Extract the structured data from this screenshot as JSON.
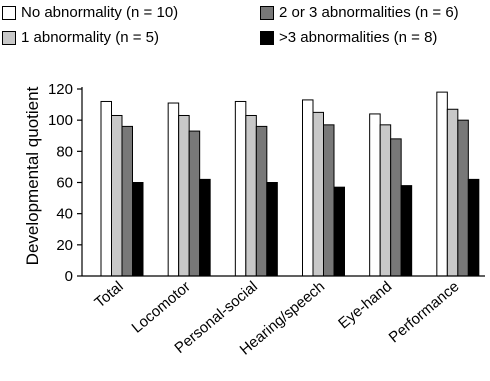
{
  "chart_data": {
    "type": "bar",
    "categories": [
      "Total",
      "Locomotor",
      "Personal-social",
      "Hearing/speech",
      "Eye-hand",
      "Performance"
    ],
    "series": [
      {
        "name": "No abnormality (n = 10)",
        "color": "#ffffff",
        "values": [
          112,
          111,
          112,
          113,
          104,
          118
        ]
      },
      {
        "name": "1 abnormality (n = 5)",
        "color": "#c8c8c8",
        "values": [
          103,
          103,
          103,
          105,
          97,
          107
        ]
      },
      {
        "name": "2 or 3 abnormalities (n = 6)",
        "color": "#787878",
        "values": [
          96,
          93,
          96,
          97,
          88,
          100
        ]
      },
      {
        "name": ">3 abnormalities (n = 8)",
        "color": "#000000",
        "values": [
          60,
          62,
          60,
          57,
          58,
          62
        ]
      }
    ],
    "title": "",
    "xlabel": "",
    "ylabel": "Developmental quotient",
    "ylim": [
      0,
      120
    ],
    "yticks": [
      0,
      20,
      40,
      60,
      80,
      100,
      120
    ],
    "grid": false,
    "legend": "top"
  }
}
